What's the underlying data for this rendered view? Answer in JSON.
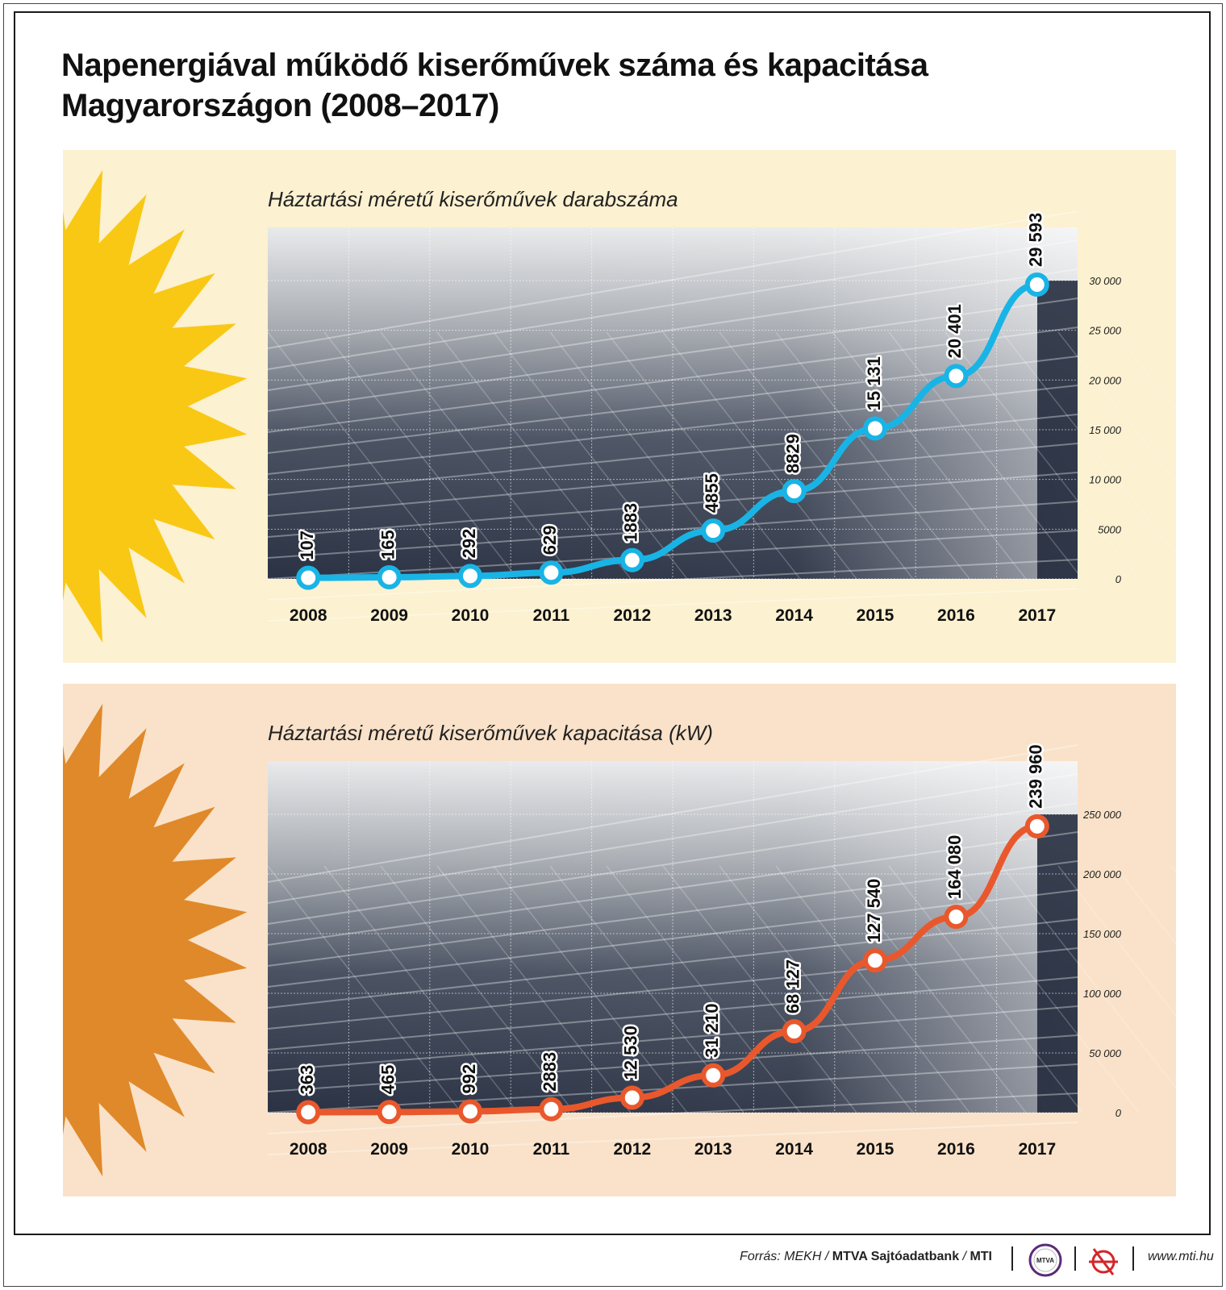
{
  "title_line1": "Napenergiával működő kiserőművek száma és kapacitása",
  "title_line2": "Magyarországon (2008–2017)",
  "colors": {
    "panel1_bg": "#fcf1d0",
    "panel2_bg": "#f9e2c9",
    "sun1": "#f9c814",
    "sun2": "#e0892a",
    "line1": "#19b4e6",
    "line2": "#e9582c"
  },
  "chart_data": [
    {
      "type": "line",
      "title": "Háztartási méretű kiserőművek darabszáma",
      "categories": [
        "2008",
        "2009",
        "2010",
        "2011",
        "2012",
        "2013",
        "2014",
        "2015",
        "2016",
        "2017"
      ],
      "values": [
        107,
        165,
        292,
        629,
        1883,
        4855,
        8829,
        15131,
        20401,
        29593
      ],
      "value_labels": [
        "107",
        "165",
        "292",
        "629",
        "1883",
        "4855",
        "8829",
        "15 131",
        "20 401",
        "29 593"
      ],
      "yticks": [
        0,
        5000,
        10000,
        15000,
        20000,
        25000,
        30000
      ],
      "ytick_labels": [
        "0",
        "5000",
        "10 000",
        "15 000",
        "20 000",
        "25 000",
        "30 000"
      ],
      "ylim": [
        0,
        30000
      ],
      "xlabel": "",
      "ylabel": ""
    },
    {
      "type": "line",
      "title": "Háztartási méretű kiserőművek kapacitása (kW)",
      "categories": [
        "2008",
        "2009",
        "2010",
        "2011",
        "2012",
        "2013",
        "2014",
        "2015",
        "2016",
        "2017"
      ],
      "values": [
        363,
        465,
        992,
        2883,
        12530,
        31210,
        68127,
        127540,
        164080,
        239960
      ],
      "value_labels": [
        "363",
        "465",
        "992",
        "2883",
        "12 530",
        "31 210",
        "68 127",
        "127 540",
        "164 080",
        "239 960"
      ],
      "yticks": [
        0,
        50000,
        100000,
        150000,
        200000,
        250000
      ],
      "ytick_labels": [
        "0",
        "50 000",
        "100 000",
        "150 000",
        "200 000",
        "250 000"
      ],
      "ylim": [
        0,
        250000
      ],
      "xlabel": "",
      "ylabel": ""
    }
  ],
  "footer": {
    "source_prefix": "Forrás: MEKH /",
    "source_bold": "MTVA Sajtóadatbank",
    "source_sep": "/",
    "source_bold2": "MTI",
    "mtva_logo_text": "MTVA",
    "website": "www.mti.hu"
  }
}
